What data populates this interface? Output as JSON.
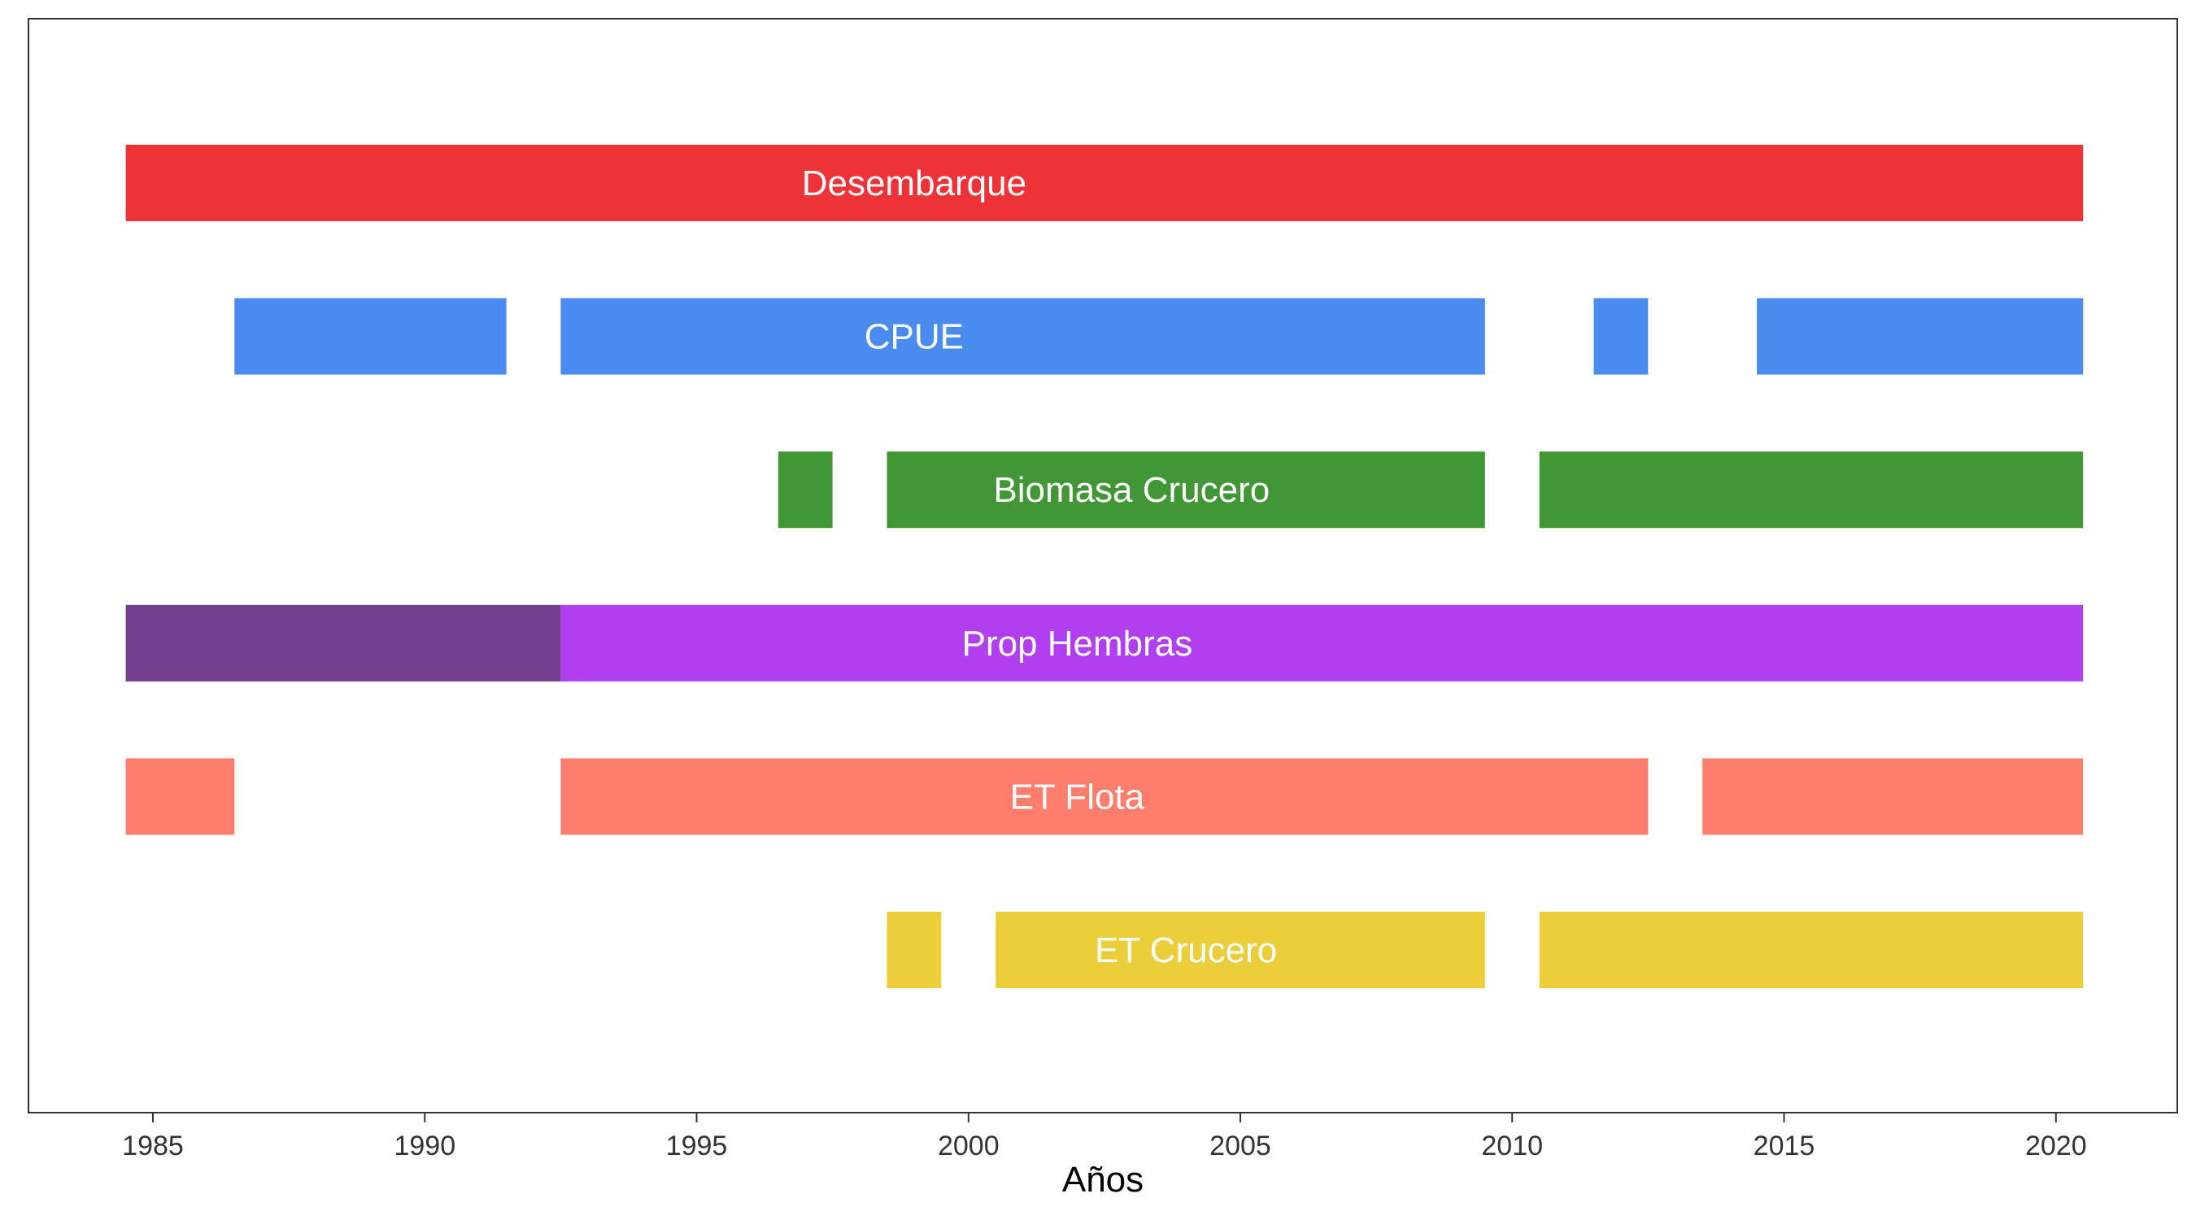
{
  "chart_data": {
    "type": "bar",
    "orientation": "horizontal",
    "chart_style": "timeline / gantt of data availability by year",
    "xlabel": "Años",
    "ylabel": "",
    "xlim": [
      1983.5,
      2021.8
    ],
    "x_ticks": [
      1985,
      1990,
      1995,
      2000,
      2005,
      2010,
      2015,
      2020
    ],
    "grid": false,
    "legend": "none",
    "series": [
      {
        "label": "Desembarque",
        "label_center_year": 1999.0,
        "segments": [
          {
            "start": 1985,
            "end": 2020,
            "color": "#EE3338"
          }
        ]
      },
      {
        "label": "CPUE",
        "label_center_year": 1999.0,
        "segments": [
          {
            "start": 1987,
            "end": 1991,
            "color": "#498BEE"
          },
          {
            "start": 1993,
            "end": 2009,
            "color": "#498BEE"
          },
          {
            "start": 2012,
            "end": 2012,
            "color": "#498BEE"
          },
          {
            "start": 2015,
            "end": 2020,
            "color": "#498BEE"
          }
        ]
      },
      {
        "label": "Biomasa Crucero",
        "label_center_year": 2003.0,
        "segments": [
          {
            "start": 1997,
            "end": 1997,
            "color": "#419736"
          },
          {
            "start": 1999,
            "end": 2009,
            "color": "#419736"
          },
          {
            "start": 2011,
            "end": 2020,
            "color": "#419736"
          }
        ]
      },
      {
        "label": "Prop Hembras",
        "label_center_year": 2002.0,
        "segments": [
          {
            "start": 1985,
            "end": 1992,
            "color": "#743E8E"
          },
          {
            "start": 1993,
            "end": 2020,
            "color": "#B13FEF"
          }
        ]
      },
      {
        "label": "ET Flota",
        "label_center_year": 2002.0,
        "segments": [
          {
            "start": 1985,
            "end": 1986,
            "color": "#FF7D6C"
          },
          {
            "start": 1993,
            "end": 2012,
            "color": "#FF7D6C"
          },
          {
            "start": 2014,
            "end": 2020,
            "color": "#FF7D6C"
          }
        ]
      },
      {
        "label": "ET Crucero",
        "label_center_year": 2004.0,
        "segments": [
          {
            "start": 1999,
            "end": 1999,
            "color": "#EBCE3A"
          },
          {
            "start": 2001,
            "end": 2009,
            "color": "#EBCE3A"
          },
          {
            "start": 2011,
            "end": 2020,
            "color": "#EBCE3A"
          }
        ]
      }
    ]
  }
}
